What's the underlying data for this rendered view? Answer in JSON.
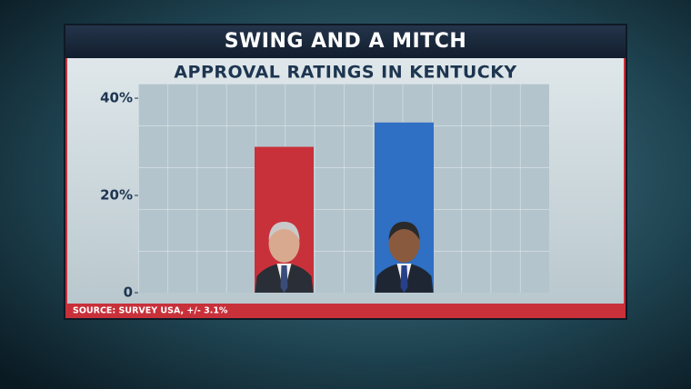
{
  "chart_data": {
    "type": "bar",
    "title": "SWING AND A MITCH",
    "subtitle": "APPROVAL RATINGS IN KENTUCKY",
    "categories": [
      null,
      null
    ],
    "values": [
      30,
      35
    ],
    "colors": [
      "#c8313a",
      "#2f6fc4"
    ],
    "ylim": [
      0,
      43
    ],
    "yticks": [
      0,
      {
        "value": 20,
        "label": "20%"
      },
      {
        "value": 40,
        "label": "40%"
      }
    ],
    "source": "SOURCE: SURVEY USA, +/- 3.1%"
  }
}
